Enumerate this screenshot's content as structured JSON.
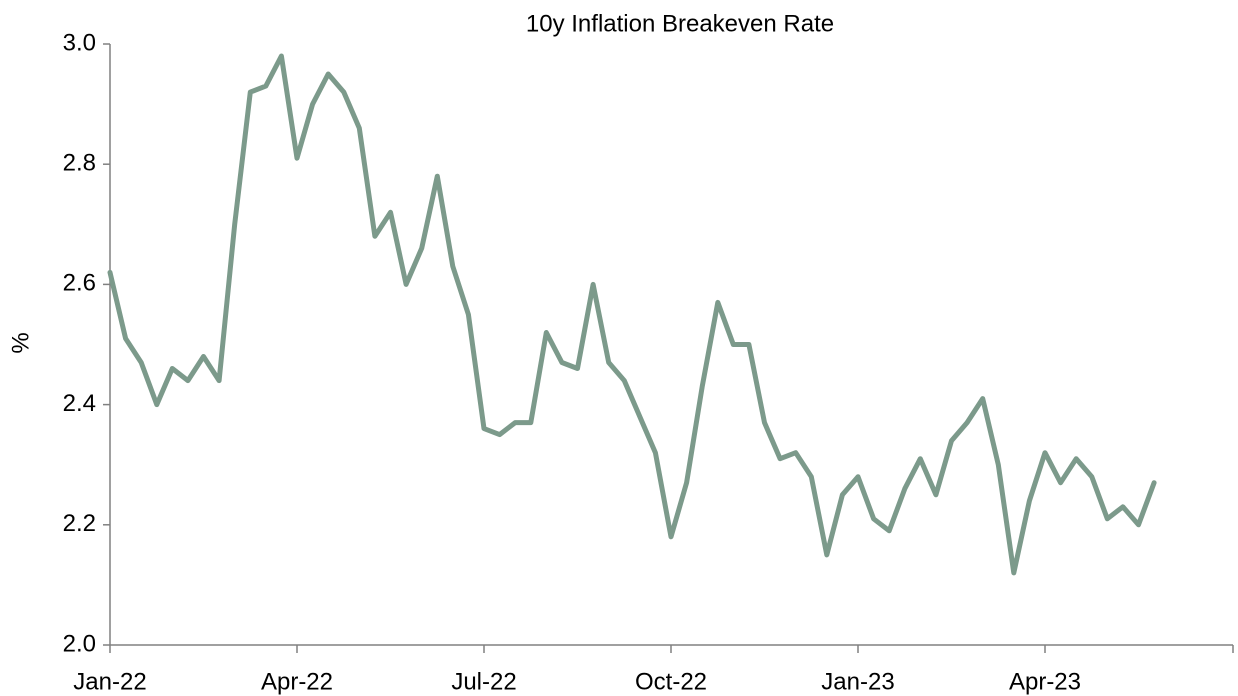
{
  "chart_data": {
    "type": "line",
    "title": "10y Inflation Breakeven Rate",
    "y_label": "%",
    "categories": [
      "Jan-22",
      null,
      null,
      null,
      null,
      null,
      null,
      null,
      null,
      null,
      null,
      null,
      "Apr-22",
      null,
      null,
      null,
      null,
      null,
      null,
      null,
      null,
      null,
      null,
      null,
      "Jul-22",
      null,
      null,
      null,
      null,
      null,
      null,
      null,
      null,
      null,
      null,
      null,
      "Oct-22",
      null,
      null,
      null,
      null,
      null,
      null,
      null,
      null,
      null,
      null,
      null,
      "Jan-23",
      null,
      null,
      null,
      null,
      null,
      null,
      null,
      null,
      null,
      null,
      null,
      "Apr-23",
      null,
      null,
      null,
      null,
      null,
      null,
      null
    ],
    "series": [
      {
        "name": "10y Inflation Breakeven Rate",
        "color": "#7c9a8b",
        "values": [
          2.62,
          2.51,
          2.47,
          2.4,
          2.46,
          2.44,
          2.48,
          2.44,
          2.7,
          2.92,
          2.93,
          2.98,
          2.81,
          2.9,
          2.95,
          2.92,
          2.86,
          2.68,
          2.72,
          2.6,
          2.66,
          2.78,
          2.63,
          2.55,
          2.36,
          2.35,
          2.37,
          2.37,
          2.52,
          2.47,
          2.46,
          2.6,
          2.47,
          2.44,
          2.38,
          2.32,
          2.18,
          2.27,
          2.43,
          2.57,
          2.5,
          2.5,
          2.37,
          2.31,
          2.32,
          2.28,
          2.15,
          2.25,
          2.28,
          2.21,
          2.19,
          2.26,
          2.31,
          2.25,
          2.34,
          2.37,
          2.41,
          2.3,
          2.12,
          2.24,
          2.32,
          2.27,
          2.31,
          2.28,
          2.21,
          2.23,
          2.2,
          2.27
        ]
      }
    ],
    "ylim": [
      2.0,
      3.0
    ],
    "yticks": [
      {
        "value": 2.0,
        "label": "2.0"
      },
      {
        "value": 2.2,
        "label": "2.2"
      },
      {
        "value": 2.4,
        "label": "2.4"
      },
      {
        "value": 2.6,
        "label": "2.6"
      },
      {
        "value": 2.8,
        "label": "2.8"
      },
      {
        "value": 3.0,
        "label": "3.0"
      }
    ],
    "grid": false
  }
}
